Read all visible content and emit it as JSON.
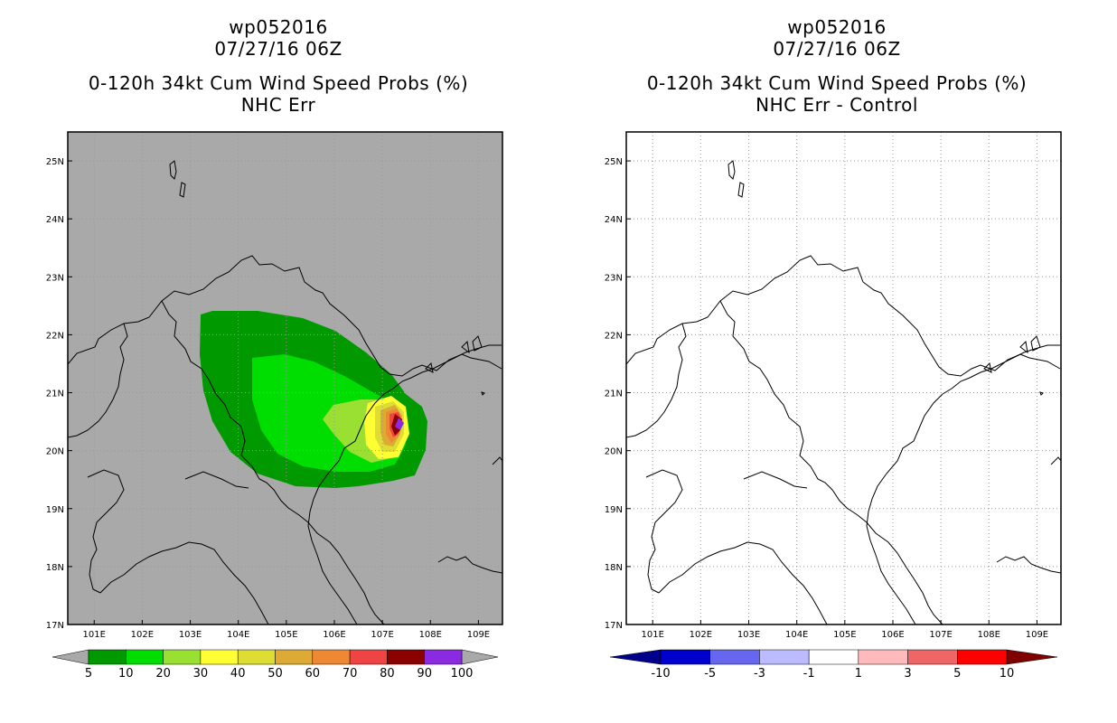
{
  "panels": [
    {
      "id": "left",
      "title_line1": "wp052016",
      "title_line2": "07/27/16 06Z",
      "title_line3": "0-120h 34kt Cum Wind Speed Probs (%)",
      "title_line4": "NHC Err",
      "background": "#a9a9a9"
    },
    {
      "id": "right",
      "title_line1": "wp052016",
      "title_line2": "07/27/16 06Z",
      "title_line3": "0-120h 34kt Cum Wind Speed Probs (%)",
      "title_line4": "NHC Err - Control",
      "background": "#ffffff"
    }
  ],
  "axes": {
    "lon_labels": [
      "101E",
      "102E",
      "103E",
      "104E",
      "105E",
      "106E",
      "107E",
      "108E",
      "109E"
    ],
    "lat_labels": [
      "17N",
      "18N",
      "19N",
      "20N",
      "21N",
      "22N",
      "23N",
      "24N",
      "25N"
    ],
    "lon_values": [
      101,
      102,
      103,
      104,
      105,
      106,
      107,
      108,
      109
    ],
    "lat_values": [
      17,
      18,
      19,
      20,
      21,
      22,
      23,
      24,
      25
    ],
    "lon_range": [
      100.45,
      109.5
    ],
    "lat_range": [
      17.0,
      25.5
    ]
  },
  "colorbar_left": {
    "labels": [
      "5",
      "10",
      "20",
      "30",
      "40",
      "50",
      "60",
      "70",
      "80",
      "90",
      "100"
    ],
    "colors": [
      "#009900",
      "#00dd00",
      "#99e033",
      "#ffff33",
      "#dddd33",
      "#ddaa33",
      "#ee8833",
      "#ee4444",
      "#8b0000",
      "#8a2be2"
    ],
    "end_low": "#a9a9a9",
    "end_high": "#a9a9a9"
  },
  "colorbar_right": {
    "labels": [
      "-10",
      "-5",
      "-3",
      "-1",
      "1",
      "3",
      "5",
      "10"
    ],
    "colors": [
      "#0000cc",
      "#6666ee",
      "#bbbbff",
      "#ffffff",
      "#ffbbbb",
      "#ee6666",
      "#ff0000"
    ],
    "end_low": "#00008b",
    "end_high": "#800000"
  },
  "map_data": {
    "probability_field": {
      "levels": [
        5,
        10,
        20,
        30,
        40,
        50,
        60,
        70,
        80,
        90
      ]
    }
  }
}
